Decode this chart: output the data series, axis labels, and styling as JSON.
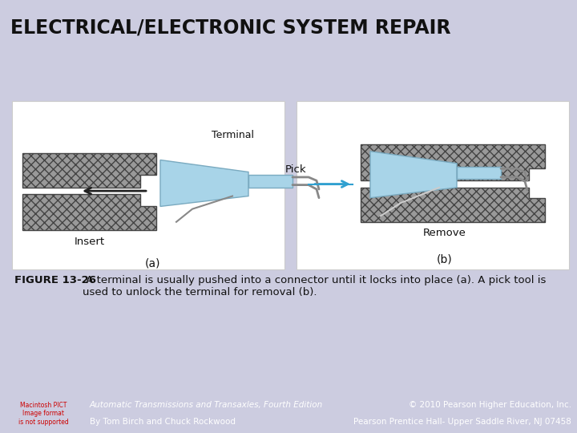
{
  "title": "ELECTRICAL/ELECTRONIC SYSTEM REPAIR",
  "title_color": "#111111",
  "title_bg_color": "#c8c8e0",
  "title_fontsize": 17,
  "body_bg_color": "#cccce0",
  "panel_bg_color": "#ffffff",
  "caption_bold": "FIGURE 13-26",
  "caption_rest": " A terminal is usually pushed into a connector until it locks into place (a). A pick tool is\nused to unlock the terminal for removal (b).",
  "caption_fontsize": 9.5,
  "footer_bg_color": "#2a2a2a",
  "footer_left1": "Automatic Transmissions and Transaxles, Fourth Edition",
  "footer_left2": "By Tom Birch and Chuck Rockwood",
  "footer_right1": "© 2010 Pearson Higher Education, Inc.",
  "footer_right2": "Pearson Prentice Hall- Upper Saddle River, NJ 07458",
  "footer_fontsize": 7.5,
  "footer_color": "#ffffff",
  "logo_text": "Macintosh PICT\nImage format\nis not supported",
  "panel_a_label": "(a)",
  "panel_b_label": "(b)",
  "insert_label": "Insert",
  "remove_label": "Remove",
  "terminal_label": "Terminal",
  "pick_label": "Pick",
  "connector_gray": "#999999",
  "connector_hatch": "xxx",
  "terminal_blue": "#a8d4e8",
  "terminal_blue_edge": "#7aaac0",
  "arrow_black": "#222222",
  "arrow_blue": "#30a0d0",
  "wire_color": "#888888",
  "pick_tool_color": "#aaaaaa"
}
